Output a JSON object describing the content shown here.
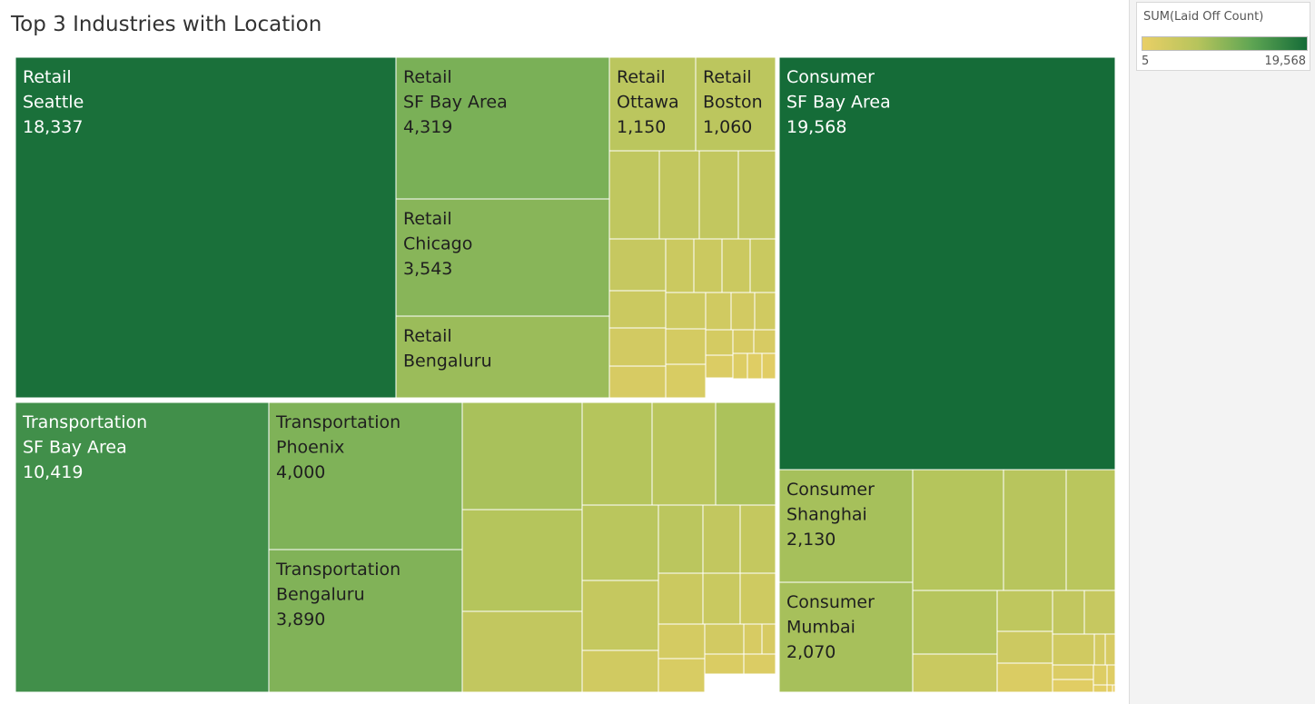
{
  "title": "Top 3 Industries with Location",
  "legend": {
    "title": "SUM(Laid Off Count)",
    "min_label": "5",
    "max_label": "19,568",
    "min_value": 5,
    "max_value": 19568,
    "color_low": "#e9cf66",
    "color_high": "#156c38"
  },
  "chart_data": {
    "type": "treemap",
    "measure": "SUM(Laid Off Count)",
    "labeled": [
      {
        "industry": "Retail",
        "location": "Seattle",
        "value": 18337,
        "value_label": "18,337"
      },
      {
        "industry": "Retail",
        "location": "SF Bay Area",
        "value": 4319,
        "value_label": "4,319"
      },
      {
        "industry": "Retail",
        "location": "Ottawa",
        "value": 1150,
        "value_label": "1,150"
      },
      {
        "industry": "Retail",
        "location": "Boston",
        "value": 1060,
        "value_label": "1,060"
      },
      {
        "industry": "Retail",
        "location": "Chicago",
        "value": 3543,
        "value_label": "3,543"
      },
      {
        "industry": "Retail",
        "location": "Bengaluru",
        "value": 2600,
        "value_label": ""
      },
      {
        "industry": "Consumer",
        "location": "SF Bay Area",
        "value": 19568,
        "value_label": "19,568"
      },
      {
        "industry": "Consumer",
        "location": "Shanghai",
        "value": 2130,
        "value_label": "2,130"
      },
      {
        "industry": "Consumer",
        "location": "Mumbai",
        "value": 2070,
        "value_label": "2,070"
      },
      {
        "industry": "Transportation",
        "location": "SF Bay Area",
        "value": 10419,
        "value_label": "10,419"
      },
      {
        "industry": "Transportation",
        "location": "Phoenix",
        "value": 4000,
        "value_label": "4,000"
      },
      {
        "industry": "Transportation",
        "location": "Bengaluru",
        "value": 3890,
        "value_label": "3,890"
      }
    ],
    "unlabeled": {
      "Retail": [
        850,
        800,
        780,
        800,
        600,
        450,
        450,
        450,
        500,
        450,
        350,
        300,
        250,
        300,
        250,
        200,
        200,
        150,
        150,
        150,
        120,
        80,
        60,
        40,
        30
      ],
      "Transportation": [
        2000,
        1500,
        1200,
        1900,
        1500,
        1200,
        1100,
        800,
        700,
        800,
        650,
        450,
        500,
        350,
        300,
        200,
        250,
        150,
        150,
        120,
        100,
        80
      ],
      "Consumer": [
        1500,
        1300,
        1200,
        1400,
        900,
        800,
        600,
        500,
        400,
        300,
        200,
        150,
        100,
        80,
        60,
        40,
        30,
        20,
        10,
        5
      ]
    }
  }
}
